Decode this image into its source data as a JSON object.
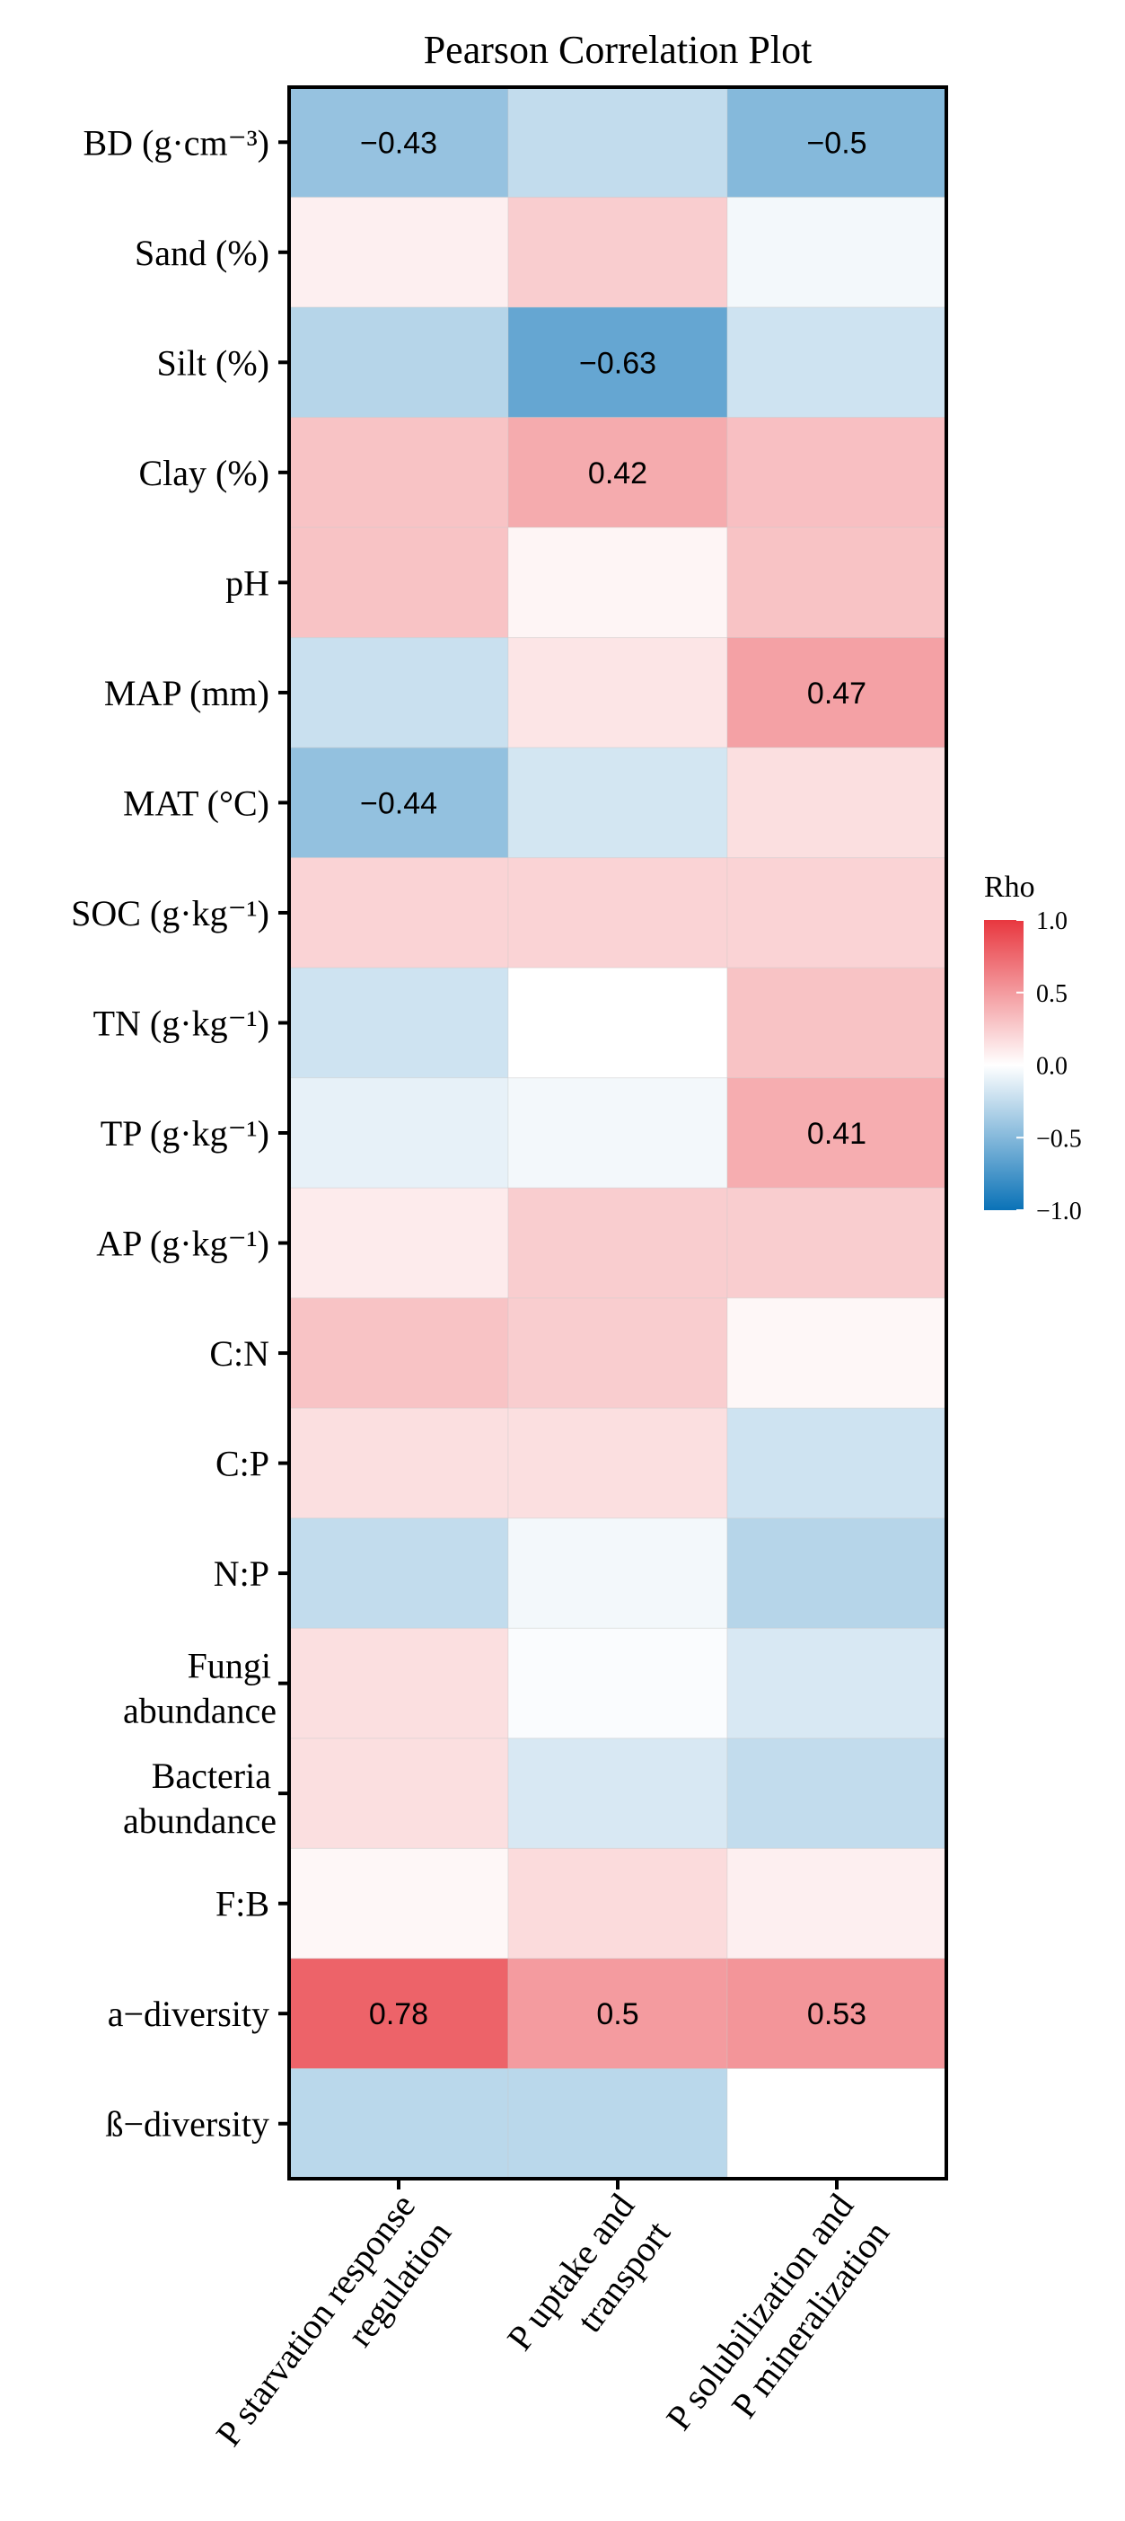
{
  "chart_data": {
    "type": "heatmap",
    "title": "Pearson Correlation Plot",
    "rows": [
      "BD (g·cm⁻³)",
      "Sand (%)",
      "Silt (%)",
      "Clay (%)",
      "pH",
      "MAP (mm)",
      "MAT (°C)",
      "SOC (g·kg⁻¹)",
      "TN (g·kg⁻¹)",
      "TP (g·kg⁻¹)",
      "AP (g·kg⁻¹)",
      "C:N",
      "C:P",
      "N:P",
      "Fungi abundance",
      "Bacteria abundance",
      "F:B",
      "a−diversity",
      "ß−diversity"
    ],
    "columns": [
      "P starvation response regulation",
      "P uptake and transport",
      "P solubilization and P mineralization"
    ],
    "values": [
      [
        -0.43,
        -0.25,
        -0.5
      ],
      [
        0.08,
        0.25,
        -0.05
      ],
      [
        -0.3,
        -0.63,
        -0.2
      ],
      [
        0.3,
        0.42,
        0.32
      ],
      [
        0.3,
        0.05,
        0.3
      ],
      [
        -0.22,
        0.13,
        0.47
      ],
      [
        -0.44,
        -0.18,
        0.16
      ],
      [
        0.22,
        0.22,
        0.22
      ],
      [
        -0.2,
        0.0,
        0.3
      ],
      [
        -0.1,
        -0.05,
        0.41
      ],
      [
        0.1,
        0.25,
        0.25
      ],
      [
        0.3,
        0.25,
        0.04
      ],
      [
        0.16,
        0.16,
        -0.2
      ],
      [
        -0.25,
        -0.05,
        -0.3
      ],
      [
        0.16,
        -0.02,
        -0.16
      ],
      [
        0.16,
        -0.16,
        -0.25
      ],
      [
        0.04,
        0.18,
        0.08
      ],
      [
        0.78,
        0.5,
        0.53
      ],
      [
        -0.28,
        -0.28,
        0.0
      ]
    ],
    "labels": [
      [
        "−0.43",
        "",
        "−0.5"
      ],
      [
        "",
        "",
        ""
      ],
      [
        "",
        "−0.63",
        ""
      ],
      [
        "",
        "0.42",
        ""
      ],
      [
        "",
        "",
        ""
      ],
      [
        "",
        "",
        "0.47"
      ],
      [
        "−0.44",
        "",
        ""
      ],
      [
        "",
        "",
        ""
      ],
      [
        "",
        "",
        ""
      ],
      [
        "",
        "",
        "0.41"
      ],
      [
        "",
        "",
        ""
      ],
      [
        "",
        "",
        ""
      ],
      [
        "",
        "",
        ""
      ],
      [
        "",
        "",
        ""
      ],
      [
        "",
        "",
        ""
      ],
      [
        "",
        "",
        ""
      ],
      [
        "",
        "",
        ""
      ],
      [
        "0.78",
        "0.5",
        "0.53"
      ],
      [
        "",
        "",
        ""
      ]
    ],
    "color_range": [
      -1.0,
      1.0
    ],
    "colors": {
      "negative": "#0a72b7",
      "zero": "#ffffff",
      "positive": "#e8373f"
    },
    "legend": {
      "title": "Rho",
      "ticks": [
        "1.0",
        "0.5",
        "0.0",
        "−0.5",
        "−1.0"
      ],
      "position": "right"
    }
  }
}
